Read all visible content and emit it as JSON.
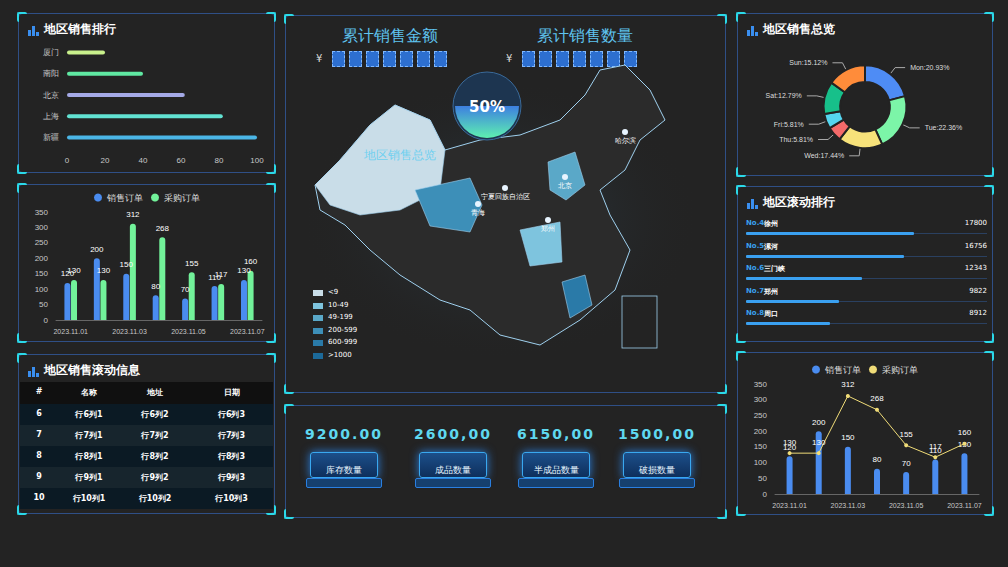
{
  "header": {
    "amount_title": "累计销售金额",
    "count_title": "累计销售数量",
    "currency": "¥"
  },
  "chart_data": [
    {
      "type": "bar",
      "title": "地区销售排行",
      "orientation": "horizontal",
      "categories": [
        "厦门",
        "南阳",
        "北京",
        "上海",
        "新疆"
      ],
      "values": [
        20,
        40,
        62,
        82,
        100
      ],
      "colors": [
        "#c9f08c",
        "#5fe8a2",
        "#a4a9e6",
        "#62e2d2",
        "#4bb6e6"
      ],
      "xlim": [
        0,
        100
      ],
      "xticks": [
        0,
        20,
        40,
        60,
        80,
        100
      ],
      "grid": false
    },
    {
      "type": "bar",
      "categories": [
        "2023.11.01",
        null,
        "2023.11.03",
        null,
        "2023.11.05",
        null,
        "2023.11.07"
      ],
      "series": [
        {
          "name": "销售订单",
          "color": "#4a8cf0",
          "values": [
            120,
            200,
            150,
            80,
            70,
            110,
            130
          ]
        },
        {
          "name": "采购订单",
          "color": "#72f29a",
          "values": [
            130,
            130,
            312,
            268,
            155,
            117,
            160
          ]
        }
      ],
      "ylim": [
        0,
        350
      ],
      "yticks": [
        0,
        50,
        100,
        150,
        200,
        250,
        300,
        350
      ],
      "data_labels": true,
      "legend": "top",
      "grid": false
    },
    {
      "type": "pie",
      "title": "地区销售总览",
      "categories": [
        "Mon",
        "Tue",
        "Wed",
        "Thu",
        "Fri",
        "Sat",
        "Sun"
      ],
      "values": [
        20.93,
        22.36,
        17.44,
        5.81,
        5.81,
        12.79,
        15.12
      ],
      "value_labels": [
        "Mon:20.93%",
        "Tue:22.36%",
        "Wed:17.44%",
        "Thu:5.81%",
        "Fri:5.81%",
        "Sat:12.79%",
        "Sun:15.12%"
      ],
      "colors": [
        "#4e8cf5",
        "#7cf5a8",
        "#f7e27a",
        "#f56a6a",
        "#55d6f0",
        "#17c08a",
        "#ff8c3a"
      ],
      "data_labels": true
    },
    {
      "type": "bar",
      "categories": [
        "2023.11.01",
        null,
        "2023.11.03",
        null,
        "2023.11.05",
        null,
        "2023.11.07"
      ],
      "series": [
        {
          "name": "销售订单",
          "type": "bar",
          "color": "#4a8cf0",
          "values": [
            120,
            200,
            150,
            80,
            70,
            110,
            130
          ]
        },
        {
          "name": "采购订单",
          "type": "line",
          "color": "#f0dc78",
          "marker": "circle",
          "line_style": "solid",
          "values": [
            130,
            130,
            312,
            268,
            155,
            117,
            160
          ]
        }
      ],
      "ylim": [
        0,
        350
      ],
      "yticks": [
        0,
        50,
        100,
        150,
        200,
        250,
        300,
        350
      ],
      "data_labels": true,
      "legend": "top",
      "grid": false
    }
  ],
  "table": {
    "title": "地区销售滚动信息",
    "columns": [
      "#",
      "名称",
      "地址",
      "日期"
    ],
    "rows": [
      [
        "6",
        "行6列1",
        "行6列2",
        "行6列3"
      ],
      [
        "7",
        "行7列1",
        "行7列2",
        "行7列3"
      ],
      [
        "8",
        "行8列1",
        "行8列2",
        "行8列3"
      ],
      [
        "9",
        "行9列1",
        "行9列2",
        "行9列3"
      ],
      [
        "10",
        "行10列1",
        "行10列2",
        "行10列3"
      ]
    ]
  },
  "ranking": {
    "title": "地区滚动排行",
    "items": [
      {
        "rank": "No.4",
        "name": "徐州",
        "value": 17800
      },
      {
        "rank": "No.5",
        "name": "漯河",
        "value": 16756
      },
      {
        "rank": "No.6",
        "name": "三门峡",
        "value": 12343
      },
      {
        "rank": "No.7",
        "name": "郑州",
        "value": 9822
      },
      {
        "rank": "No.8",
        "name": "周口",
        "value": 8912
      }
    ]
  },
  "map": {
    "title": "地区销售总览",
    "gauge": {
      "value": 50,
      "label": "50%"
    },
    "cities": [
      "哈尔滨",
      "北京",
      "宁夏回族自治区",
      "青海",
      "郑州"
    ],
    "legend": [
      {
        "label": "<9",
        "color": "#c9dde8"
      },
      {
        "label": "10-49",
        "color": "#7ec4de"
      },
      {
        "label": "49-199",
        "color": "#5aa8c8"
      },
      {
        "label": "200-599",
        "color": "#3d8fb8"
      },
      {
        "label": "600-999",
        "color": "#2a7aa8"
      },
      {
        "label": ">1000",
        "color": "#1c6a9a"
      }
    ]
  },
  "stats": [
    {
      "value": "9200.00",
      "label": "库存数量"
    },
    {
      "value": "2600,00",
      "label": "成品数量"
    },
    {
      "value": "6150,00",
      "label": "半成品数量"
    },
    {
      "value": "1500,00",
      "label": "破损数量"
    }
  ]
}
